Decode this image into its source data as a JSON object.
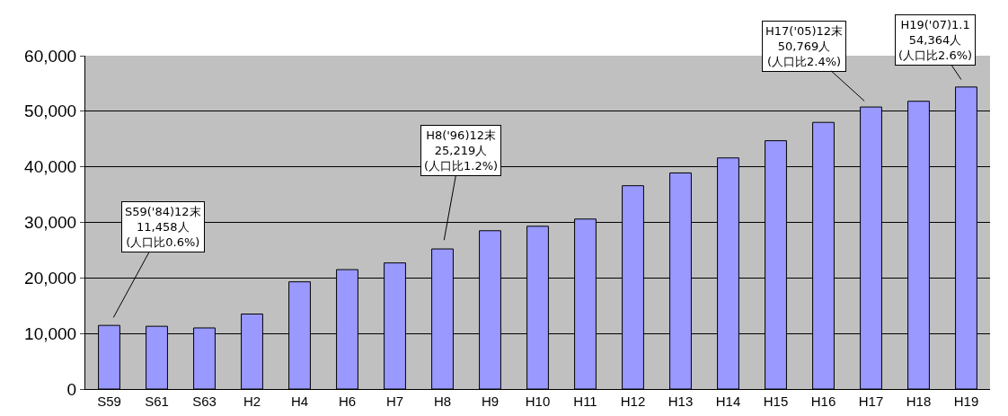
{
  "chart_data": {
    "type": "bar",
    "categories": [
      "S59",
      "S61",
      "S63",
      "H2",
      "H4",
      "H6",
      "H7",
      "H8",
      "H9",
      "H10",
      "H11",
      "H12",
      "H13",
      "H14",
      "H15",
      "H16",
      "H17",
      "H18",
      "H19"
    ],
    "values": [
      11458,
      11300,
      11000,
      13500,
      19300,
      21500,
      22700,
      25219,
      28500,
      29300,
      30600,
      36600,
      38900,
      41600,
      44700,
      48000,
      50769,
      51800,
      54364
    ],
    "color": "#9999ff",
    "ylim": [
      0,
      60000
    ],
    "yticks": [
      {
        "value": 0,
        "label": "0"
      },
      {
        "value": 10000,
        "label": "10,000"
      },
      {
        "value": 20000,
        "label": "20,000"
      },
      {
        "value": 30000,
        "label": "30,000"
      },
      {
        "value": 40000,
        "label": "40,000"
      },
      {
        "value": 50000,
        "label": "50,000"
      },
      {
        "value": 60000,
        "label": "60,000"
      }
    ],
    "grid": "y",
    "legend": false,
    "annotations": [
      {
        "text": "S59('84)12末\n11,458人\n(人口比0.6%)",
        "x": "S59",
        "y": 11458
      },
      {
        "text": "H8('96)12末\n25,219人\n(人口比1.2%)",
        "x": "H8",
        "y": 25219
      },
      {
        "text": "H17('05)12末\n50,769人\n(人口比2.4%)",
        "x": "H17",
        "y": 50769
      },
      {
        "text": "H19('07)1.1\n54,364人\n(人口比2.6%)",
        "x": "H19",
        "y": 54364
      }
    ]
  }
}
